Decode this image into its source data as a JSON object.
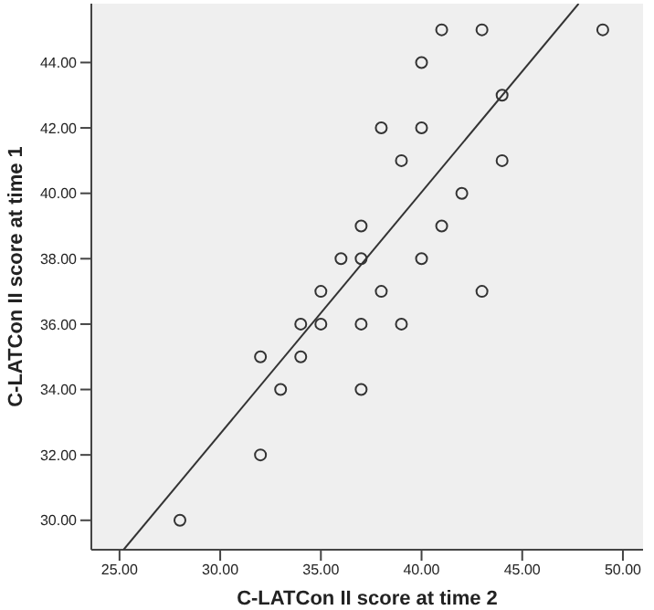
{
  "chart_data": {
    "type": "scatter",
    "xlabel": "C-LATCon II score at time 2",
    "ylabel": "C-LATCon II score at time 1",
    "xlim": [
      23.6,
      51.0
    ],
    "ylim": [
      29.1,
      45.8
    ],
    "xticks": [
      {
        "value": 25,
        "label": "25.00"
      },
      {
        "value": 30,
        "label": "30.00"
      },
      {
        "value": 35,
        "label": "35.00"
      },
      {
        "value": 40,
        "label": "40.00"
      },
      {
        "value": 45,
        "label": "45.00"
      },
      {
        "value": 50,
        "label": "50.00"
      }
    ],
    "yticks": [
      {
        "value": 30,
        "label": "30.00"
      },
      {
        "value": 32,
        "label": "32.00"
      },
      {
        "value": 34,
        "label": "34.00"
      },
      {
        "value": 36,
        "label": "36.00"
      },
      {
        "value": 38,
        "label": "38.00"
      },
      {
        "value": 40,
        "label": "40.00"
      },
      {
        "value": 42,
        "label": "42.00"
      },
      {
        "value": 44,
        "label": "44.00"
      }
    ],
    "grid": false,
    "legend": false,
    "marker": "circle",
    "series": [
      {
        "color": "#333333",
        "x": [
          41,
          43,
          49,
          40,
          44,
          38,
          40,
          39,
          44,
          42,
          37,
          41,
          36,
          37,
          40,
          35,
          38,
          43,
          34,
          35,
          37,
          39,
          32,
          34,
          33,
          37,
          32,
          28
        ],
        "values": [
          45,
          45,
          45,
          44,
          43,
          42,
          42,
          41,
          41,
          40,
          39,
          39,
          38,
          38,
          38,
          37,
          37,
          37,
          36,
          36,
          36,
          36,
          35,
          35,
          34,
          34,
          32,
          30
        ]
      },
      {
        "type": "line",
        "color": "#333333",
        "marker": "none",
        "x": [
          25.2,
          47.8
        ],
        "values": [
          29.1,
          45.8
        ]
      }
    ]
  }
}
